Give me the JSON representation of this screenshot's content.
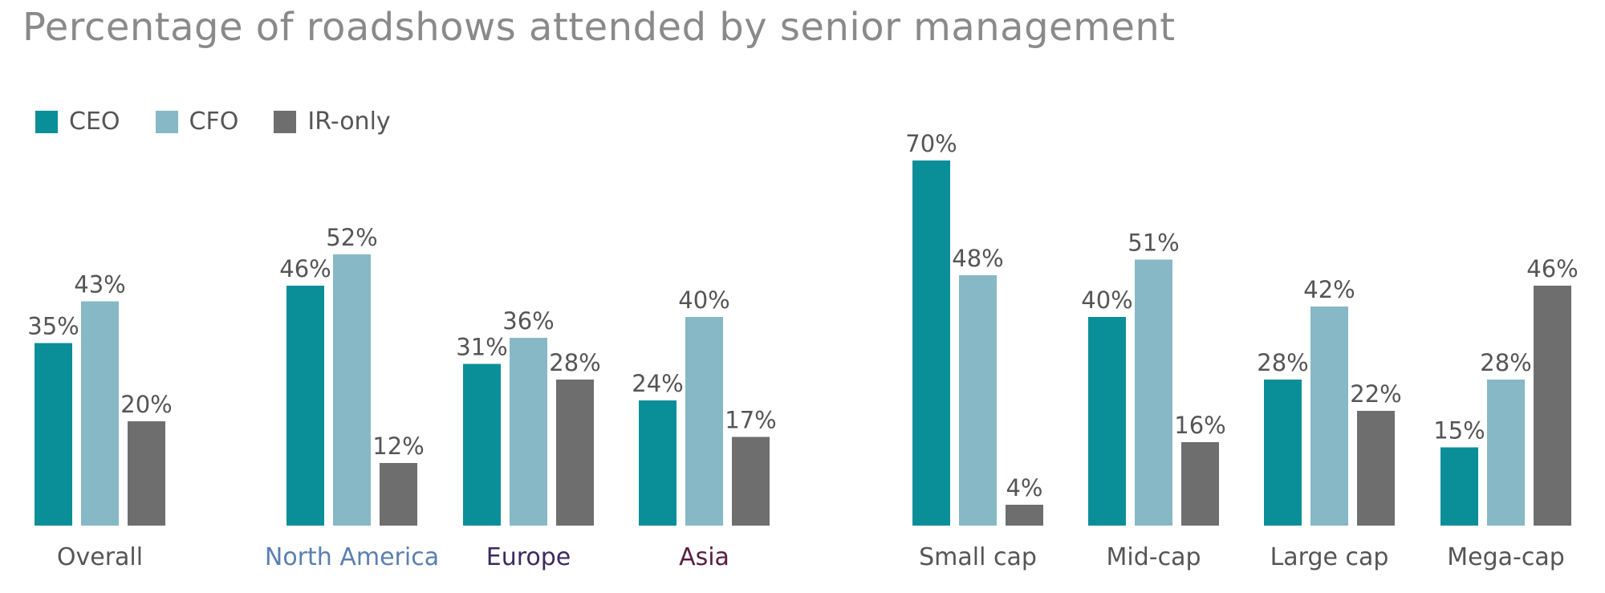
{
  "colors": {
    "CEO": "#0a8f98",
    "CFO": "#86b8c6",
    "IR-only": "#6e6e6e",
    "title": "#8a8a8a",
    "value_label": "#555555"
  },
  "chart_data": {
    "type": "bar",
    "title": "Percentage of roadshows attended by senior management",
    "xlabel": "",
    "ylabel": "",
    "ylim": [
      0,
      70
    ],
    "grid": false,
    "legend_position": "top-left",
    "series": [
      {
        "name": "CEO",
        "values": [
          35,
          46,
          31,
          24,
          70,
          40,
          28,
          15
        ]
      },
      {
        "name": "CFO",
        "values": [
          43,
          52,
          36,
          40,
          48,
          51,
          42,
          28
        ]
      },
      {
        "name": "IR-only",
        "values": [
          20,
          12,
          28,
          17,
          4,
          16,
          22,
          46
        ]
      }
    ],
    "categories": [
      "Overall",
      "North America",
      "Europe",
      "Asia",
      "Small cap",
      "Mid-cap",
      "Large cap",
      "Mega-cap"
    ],
    "category_label_colors": [
      "#555555",
      "#5a7fb0",
      "#3a2a60",
      "#5a2040",
      "#555555",
      "#555555",
      "#555555",
      "#555555"
    ],
    "value_labels": [
      [
        "35%",
        "46%",
        "31%",
        "24%",
        "70%",
        "40%",
        "28%",
        "15%"
      ],
      [
        "43%",
        "52%",
        "36%",
        "40%",
        "48%",
        "51%",
        "42%",
        "28%"
      ],
      [
        "20%",
        "12%",
        "28%",
        "17%",
        "4%",
        "16%",
        "22%",
        "46%"
      ]
    ]
  }
}
